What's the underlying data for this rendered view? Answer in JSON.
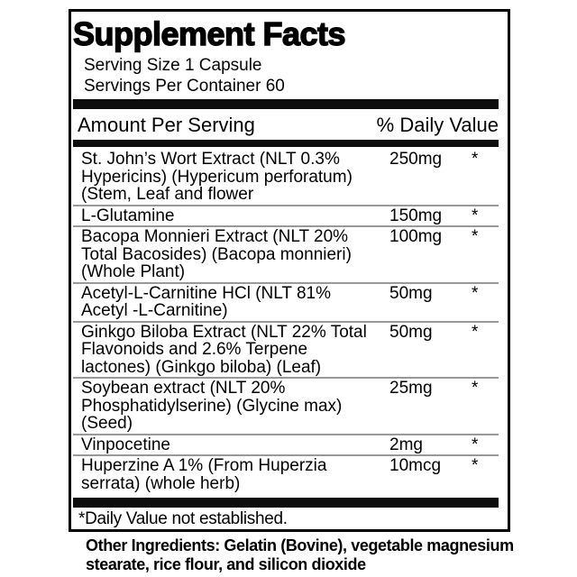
{
  "label": {
    "title": "Supplement Facts",
    "serving_size": "Serving Size 1 Capsule",
    "servings_per_container": "Servings Per Container 60",
    "columns": {
      "amount_header": "Amount Per Serving",
      "daily_value_header": "% Daily Value"
    },
    "rows": [
      {
        "name_lines": [
          "St. John’s Wort Extract (NLT 0.3%",
          "Hypericins) (Hypericum perforatum)",
          "(Stem, Leaf and flower"
        ],
        "amount": "250mg",
        "daily_value": "*"
      },
      {
        "name_lines": [
          "L-Glutamine"
        ],
        "amount": "150mg",
        "daily_value": "*"
      },
      {
        "name_lines": [
          "Bacopa Monnieri Extract (NLT 20%",
          "Total Bacosides) (Bacopa monnieri)",
          "(Whole Plant)"
        ],
        "amount": "100mg",
        "daily_value": "*"
      },
      {
        "name_lines": [
          "Acetyl-L-Carnitine HCl (NLT 81%",
          "Acetyl -L-Carnitine)"
        ],
        "amount": "50mg",
        "daily_value": "*"
      },
      {
        "name_lines": [
          "Ginkgo Biloba Extract (NLT 22% Total",
          "Flavonoids and 2.6% Terpene",
          "lactones) (Ginkgo biloba) (Leaf)"
        ],
        "amount": "50mg",
        "daily_value": "*"
      },
      {
        "name_lines": [
          "Soybean extract (NLT 20%",
          "Phosphatidylserine) (Glycine max)",
          "(Seed)"
        ],
        "amount": "25mg",
        "daily_value": "*"
      },
      {
        "name_lines": [
          "Vinpocetine"
        ],
        "amount": "2mg",
        "daily_value": "*"
      },
      {
        "name_lines": [
          "Huperzine A 1% (From Huperzia",
          "serrata) (whole herb)"
        ],
        "amount": "10mcg",
        "daily_value": "*"
      }
    ],
    "footnote": "*Daily Value not established.",
    "other_ingredients_lines": [
      "Other Ingredients: Gelatin (Bovine), vegetable magnesium",
      "stearate, rice flour, and silicon dioxide"
    ]
  },
  "colors": {
    "text": "#000000",
    "separator": "#999999",
    "bar": "#0d0d0d",
    "background": "#ffffff"
  }
}
